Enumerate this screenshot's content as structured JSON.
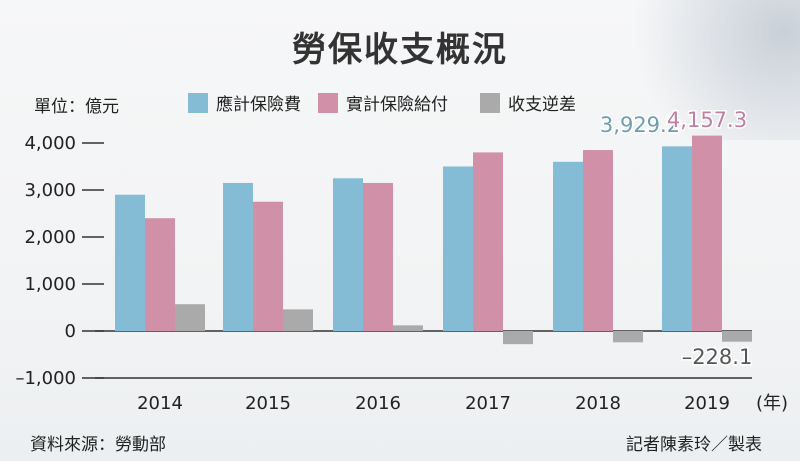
{
  "title": "勞保收支概況",
  "unit_label": "單位：億元",
  "source": "資料來源：勞動部",
  "credit": "記者陳素玲／製表",
  "x_unit": "(年)",
  "colors": {
    "insurance_fee": "#84bcd6",
    "actual_benefits": "#cf90a8",
    "balance": "#aaaaaa",
    "callout_fee": "#6f9caf",
    "callout_benefit": "#c07fa0",
    "callout_balance": "#555555"
  },
  "chart_data": {
    "type": "bar",
    "title": "勞保收支概況",
    "xlabel": "(年)",
    "ylabel": "",
    "categories": [
      "2014",
      "2015",
      "2016",
      "2017",
      "2018",
      "2019"
    ],
    "series": [
      {
        "name": "應計保險費",
        "values": [
          2900,
          3150,
          3250,
          3500,
          3600,
          3929.2
        ]
      },
      {
        "name": "實計保險給付",
        "values": [
          2400,
          2750,
          3150,
          3800,
          3850,
          4157.3
        ]
      },
      {
        "name": "收支逆差",
        "values": [
          570,
          460,
          120,
          -280,
          -240,
          -228.1
        ]
      }
    ],
    "ylim": [
      -1000,
      4000
    ],
    "yticks": [
      4000,
      3000,
      2000,
      1000,
      0,
      -1000
    ],
    "ytick_labels": [
      "4,000",
      "3,000",
      "2,000",
      "1,000",
      "0",
      "–1,000"
    ],
    "annotations": [
      {
        "text": "3,929.2",
        "category": "2019",
        "series": "應計保險費"
      },
      {
        "text": "4,157.3",
        "category": "2019",
        "series": "實計保險給付"
      },
      {
        "text": "–228.1",
        "category": "2019",
        "series": "收支逆差"
      }
    ],
    "legend": "top",
    "grid": false
  }
}
